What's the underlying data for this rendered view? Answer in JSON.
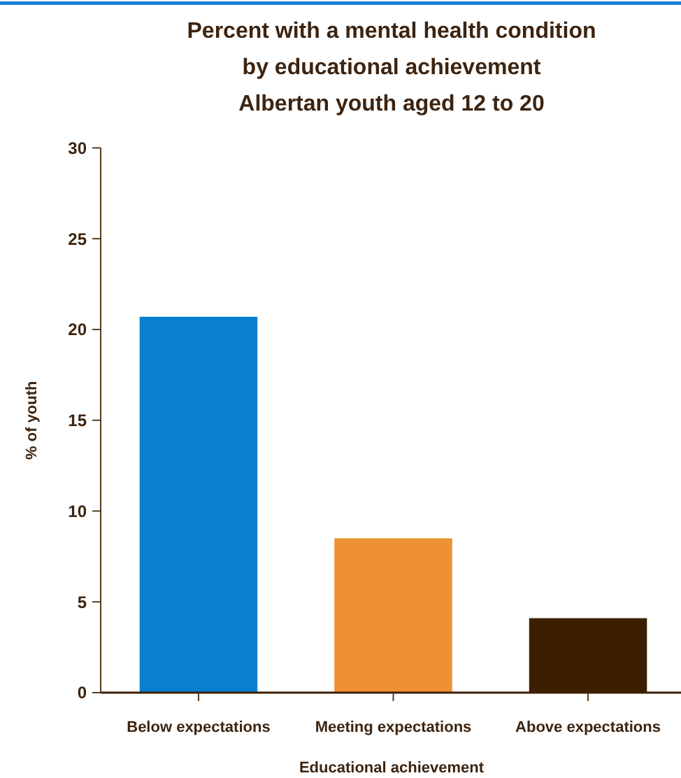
{
  "chart_data": {
    "type": "bar",
    "title": "Percent with a mental health condition\nby educational achievement\nAlbertan youth aged 12 to 20",
    "categories": [
      "Below expectations",
      "Meeting expectations",
      "Above expectations"
    ],
    "values": [
      20.7,
      8.5,
      4.1
    ],
    "colors": [
      "#0a7fd0",
      "#ee9133",
      "#3c1f00"
    ],
    "xlabel": "Educational achievement",
    "ylabel": "% of youth",
    "ylim": [
      0,
      30
    ],
    "yticks": [
      0,
      5,
      10,
      15,
      20,
      25,
      30
    ]
  }
}
